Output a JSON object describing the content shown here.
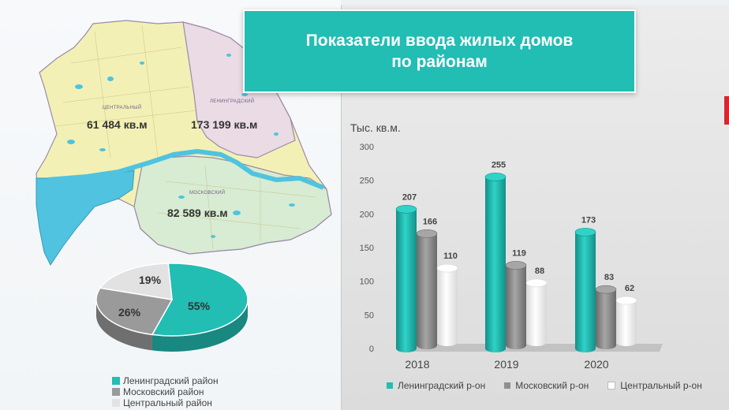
{
  "title": {
    "line1": "Показатели ввода жилых домов",
    "line2": "по районам"
  },
  "map": {
    "districts": [
      {
        "name": "ЦЕНТРАЛЬНЫЙ",
        "area": "61 484 кв.м",
        "color": "#f3f0b5"
      },
      {
        "name": "ЛЕНИНГРАДСКИЙ",
        "area": "173 199 кв.м",
        "color": "#eadbe4"
      },
      {
        "name": "МОСКОВСКИЙ",
        "area": "82 589 кв.м",
        "color": "#d7ecd2"
      }
    ],
    "water_color": "#4fc3e0"
  },
  "pie": {
    "slices": [
      {
        "name": "Ленинградский район",
        "percent": 55,
        "label": "55%",
        "color": "#22bdb3"
      },
      {
        "name": "Московский район",
        "percent": 26,
        "label": "26%",
        "color": "#9a9a9a"
      },
      {
        "name": "Центральный район",
        "percent": 19,
        "label": "19%",
        "color": "#e2e2e2"
      }
    ],
    "legend": [
      "Ленинградский район",
      "Московский район",
      "Центральный район"
    ]
  },
  "chart_data": {
    "type": "bar",
    "unit_label": "Тыс. кв.м.",
    "categories": [
      "2018",
      "2019",
      "2020"
    ],
    "series": [
      {
        "name": "Ленинградский р-он",
        "values": [
          207,
          255,
          173
        ],
        "color": "#22bdb3"
      },
      {
        "name": "Московский р-он",
        "values": [
          166,
          119,
          83
        ],
        "color": "#8f8f8f"
      },
      {
        "name": "Центральный р-он",
        "values": [
          110,
          88,
          62
        ],
        "color": "#ffffff"
      }
    ],
    "ylim": [
      0,
      300
    ],
    "yticks": [
      0,
      50,
      100,
      150,
      200,
      250,
      300
    ],
    "grid": false,
    "legend_position": "bottom"
  }
}
